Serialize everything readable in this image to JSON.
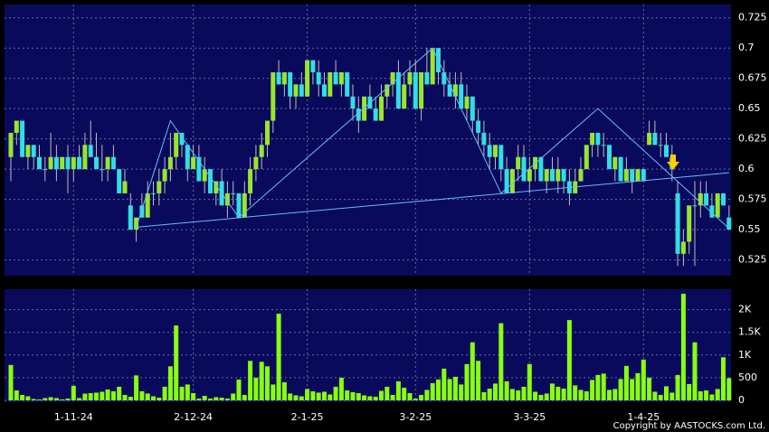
{
  "chart_data": {
    "type": "candlestick",
    "categories": [
      null,
      null,
      null,
      null,
      null,
      null,
      null,
      null,
      null,
      null,
      null,
      "1-11-24",
      null,
      null,
      null,
      null,
      null,
      null,
      null,
      null,
      null,
      null,
      null,
      null,
      null,
      null,
      null,
      null,
      null,
      null,
      null,
      null,
      "2-12-24",
      null,
      null,
      null,
      null,
      null,
      null,
      null,
      null,
      null,
      null,
      null,
      null,
      null,
      null,
      null,
      null,
      null,
      null,
      null,
      "2-1-25",
      null,
      null,
      null,
      null,
      null,
      null,
      null,
      null,
      null,
      null,
      null,
      null,
      null,
      null,
      null,
      null,
      null,
      null,
      "3-2-25",
      null,
      null,
      null,
      null,
      null,
      null,
      null,
      null,
      null,
      null,
      null,
      null,
      null,
      null,
      null,
      null,
      null,
      null,
      null,
      "3-3-25",
      null,
      null,
      null,
      null,
      null,
      null,
      null,
      null,
      null,
      null,
      null,
      null,
      null,
      null,
      null,
      null,
      null,
      null,
      null,
      "1-4-25",
      null,
      null,
      null,
      null,
      null,
      null,
      null,
      null,
      null,
      null,
      null,
      null,
      null,
      null,
      null
    ],
    "candles": [
      [
        0.61,
        0.63,
        0.59,
        0.63
      ],
      [
        0.63,
        0.64,
        0.62,
        0.64
      ],
      [
        0.64,
        0.64,
        0.61,
        0.61
      ],
      [
        0.61,
        0.62,
        0.6,
        0.62
      ],
      [
        0.62,
        0.62,
        0.6,
        0.61
      ],
      [
        0.61,
        0.62,
        0.6,
        0.6
      ],
      [
        0.6,
        0.61,
        0.59,
        0.6
      ],
      [
        0.6,
        0.63,
        0.6,
        0.61
      ],
      [
        0.61,
        0.62,
        0.59,
        0.6
      ],
      [
        0.6,
        0.61,
        0.6,
        0.61
      ],
      [
        0.61,
        0.62,
        0.58,
        0.6
      ],
      [
        0.6,
        0.61,
        0.59,
        0.61
      ],
      [
        0.61,
        0.62,
        0.6,
        0.6
      ],
      [
        0.6,
        0.63,
        0.6,
        0.62
      ],
      [
        0.62,
        0.64,
        0.61,
        0.61
      ],
      [
        0.61,
        0.63,
        0.6,
        0.6
      ],
      [
        0.6,
        0.62,
        0.59,
        0.6
      ],
      [
        0.6,
        0.61,
        0.59,
        0.61
      ],
      [
        0.61,
        0.62,
        0.6,
        0.6
      ],
      [
        0.6,
        0.6,
        0.58,
        0.58
      ],
      [
        0.58,
        0.6,
        0.58,
        0.59
      ],
      [
        0.57,
        0.58,
        0.55,
        0.55
      ],
      [
        0.55,
        0.56,
        0.54,
        0.56
      ],
      [
        0.57,
        0.58,
        0.56,
        0.56
      ],
      [
        0.56,
        0.59,
        0.56,
        0.58
      ],
      [
        0.58,
        0.59,
        0.57,
        0.58
      ],
      [
        0.58,
        0.6,
        0.57,
        0.59
      ],
      [
        0.59,
        0.61,
        0.58,
        0.6
      ],
      [
        0.6,
        0.63,
        0.59,
        0.61
      ],
      [
        0.61,
        0.63,
        0.6,
        0.63
      ],
      [
        0.63,
        0.63,
        0.61,
        0.62
      ],
      [
        0.62,
        0.62,
        0.59,
        0.6
      ],
      [
        0.6,
        0.62,
        0.6,
        0.61
      ],
      [
        0.61,
        0.62,
        0.59,
        0.59
      ],
      [
        0.59,
        0.61,
        0.58,
        0.6
      ],
      [
        0.6,
        0.6,
        0.58,
        0.58
      ],
      [
        0.58,
        0.59,
        0.57,
        0.59
      ],
      [
        0.59,
        0.6,
        0.57,
        0.57
      ],
      [
        0.57,
        0.59,
        0.56,
        0.58
      ],
      [
        0.58,
        0.59,
        0.57,
        0.58
      ],
      [
        0.58,
        0.58,
        0.56,
        0.56
      ],
      [
        0.56,
        0.59,
        0.56,
        0.58
      ],
      [
        0.58,
        0.61,
        0.57,
        0.6
      ],
      [
        0.6,
        0.62,
        0.59,
        0.61
      ],
      [
        0.61,
        0.63,
        0.6,
        0.62
      ],
      [
        0.62,
        0.64,
        0.61,
        0.64
      ],
      [
        0.64,
        0.68,
        0.63,
        0.68
      ],
      [
        0.68,
        0.69,
        0.67,
        0.67
      ],
      [
        0.67,
        0.68,
        0.66,
        0.68
      ],
      [
        0.68,
        0.68,
        0.65,
        0.66
      ],
      [
        0.66,
        0.67,
        0.65,
        0.67
      ],
      [
        0.67,
        0.68,
        0.66,
        0.66
      ],
      [
        0.66,
        0.69,
        0.66,
        0.69
      ],
      [
        0.69,
        0.69,
        0.67,
        0.68
      ],
      [
        0.68,
        0.69,
        0.66,
        0.67
      ],
      [
        0.67,
        0.68,
        0.66,
        0.66
      ],
      [
        0.66,
        0.68,
        0.66,
        0.68
      ],
      [
        0.68,
        0.69,
        0.67,
        0.67
      ],
      [
        0.67,
        0.68,
        0.66,
        0.68
      ],
      [
        0.68,
        0.68,
        0.66,
        0.66
      ],
      [
        0.66,
        0.67,
        0.64,
        0.65
      ],
      [
        0.65,
        0.66,
        0.63,
        0.64
      ],
      [
        0.64,
        0.66,
        0.64,
        0.66
      ],
      [
        0.66,
        0.67,
        0.65,
        0.65
      ],
      [
        0.65,
        0.66,
        0.64,
        0.64
      ],
      [
        0.64,
        0.67,
        0.64,
        0.66
      ],
      [
        0.66,
        0.67,
        0.65,
        0.67
      ],
      [
        0.67,
        0.68,
        0.66,
        0.68
      ],
      [
        0.68,
        0.69,
        0.65,
        0.65
      ],
      [
        0.65,
        0.68,
        0.65,
        0.67
      ],
      [
        0.67,
        0.69,
        0.66,
        0.68
      ],
      [
        0.68,
        0.69,
        0.65,
        0.65
      ],
      [
        0.65,
        0.68,
        0.64,
        0.68
      ],
      [
        0.68,
        0.7,
        0.67,
        0.67
      ],
      [
        0.67,
        0.7,
        0.67,
        0.7
      ],
      [
        0.7,
        0.7,
        0.67,
        0.68
      ],
      [
        0.68,
        0.69,
        0.66,
        0.67
      ],
      [
        0.67,
        0.68,
        0.66,
        0.66
      ],
      [
        0.66,
        0.68,
        0.65,
        0.67
      ],
      [
        0.67,
        0.68,
        0.65,
        0.65
      ],
      [
        0.65,
        0.67,
        0.64,
        0.66
      ],
      [
        0.66,
        0.66,
        0.63,
        0.64
      ],
      [
        0.64,
        0.65,
        0.62,
        0.63
      ],
      [
        0.63,
        0.64,
        0.61,
        0.62
      ],
      [
        0.62,
        0.63,
        0.6,
        0.61
      ],
      [
        0.61,
        0.62,
        0.6,
        0.62
      ],
      [
        0.62,
        0.62,
        0.59,
        0.6
      ],
      [
        0.6,
        0.61,
        0.58,
        0.58
      ],
      [
        0.58,
        0.6,
        0.58,
        0.6
      ],
      [
        0.6,
        0.62,
        0.59,
        0.61
      ],
      [
        0.61,
        0.62,
        0.59,
        0.59
      ],
      [
        0.59,
        0.61,
        0.58,
        0.6
      ],
      [
        0.6,
        0.61,
        0.59,
        0.61
      ],
      [
        0.61,
        0.61,
        0.59,
        0.59
      ],
      [
        0.59,
        0.6,
        0.58,
        0.6
      ],
      [
        0.6,
        0.61,
        0.59,
        0.59
      ],
      [
        0.59,
        0.61,
        0.58,
        0.6
      ],
      [
        0.6,
        0.6,
        0.58,
        0.59
      ],
      [
        0.59,
        0.6,
        0.57,
        0.58
      ],
      [
        0.58,
        0.6,
        0.58,
        0.59
      ],
      [
        0.59,
        0.61,
        0.59,
        0.6
      ],
      [
        0.6,
        0.62,
        0.6,
        0.62
      ],
      [
        0.62,
        0.63,
        0.61,
        0.63
      ],
      [
        0.63,
        0.63,
        0.61,
        0.62
      ],
      [
        0.62,
        0.63,
        0.61,
        0.62
      ],
      [
        0.62,
        0.62,
        0.6,
        0.6
      ],
      [
        0.6,
        0.61,
        0.59,
        0.61
      ],
      [
        0.61,
        0.61,
        0.59,
        0.59
      ],
      [
        0.59,
        0.61,
        0.59,
        0.6
      ],
      [
        0.6,
        0.6,
        0.58,
        0.59
      ],
      [
        0.59,
        0.6,
        0.59,
        0.6
      ],
      [
        0.6,
        0.6,
        0.59,
        0.59
      ],
      [
        0.62,
        0.64,
        0.62,
        0.63
      ],
      [
        0.63,
        0.64,
        0.62,
        0.62
      ],
      [
        0.62,
        0.63,
        0.61,
        0.62
      ],
      [
        0.62,
        0.63,
        0.61,
        0.61
      ],
      [
        0.61,
        0.62,
        0.59,
        0.6
      ],
      [
        0.58,
        0.59,
        0.52,
        0.53
      ],
      [
        0.53,
        0.55,
        0.52,
        0.54
      ],
      [
        0.54,
        0.57,
        0.53,
        0.57
      ],
      [
        0.57,
        0.59,
        0.52,
        0.57
      ],
      [
        0.57,
        0.59,
        0.56,
        0.58
      ],
      [
        0.58,
        0.59,
        0.57,
        0.57
      ],
      [
        0.57,
        0.58,
        0.56,
        0.56
      ],
      [
        0.56,
        0.58,
        0.56,
        0.58
      ],
      [
        0.58,
        0.58,
        0.57,
        0.57
      ],
      [
        0.56,
        0.57,
        0.55,
        0.55
      ]
    ],
    "volumes": [
      780,
      220,
      120,
      90,
      30,
      20,
      50,
      70,
      50,
      20,
      40,
      320,
      50,
      150,
      160,
      170,
      190,
      240,
      200,
      300,
      120,
      80,
      550,
      200,
      150,
      90,
      60,
      300,
      750,
      1650,
      300,
      350,
      160,
      40,
      100,
      40,
      70,
      60,
      40,
      150,
      460,
      120,
      870,
      500,
      850,
      750,
      350,
      1910,
      400,
      150,
      110,
      90,
      250,
      200,
      170,
      190,
      130,
      300,
      500,
      220,
      180,
      160,
      110,
      90,
      80,
      210,
      300,
      120,
      420,
      280,
      160,
      40,
      120,
      230,
      380,
      460,
      700,
      470,
      520,
      350,
      800,
      1280,
      870,
      180,
      260,
      370,
      1700,
      420,
      250,
      220,
      300,
      800,
      190,
      120,
      150,
      370,
      300,
      260,
      1770,
      330,
      230,
      200,
      450,
      560,
      590,
      230,
      250,
      470,
      760,
      470,
      600,
      900,
      500,
      190,
      120,
      310,
      170,
      560,
      2350,
      360,
      1280,
      200,
      220,
      130,
      250,
      950,
      490
    ],
    "up_color": "#99e62e",
    "down_color": "#33dde6",
    "volume_color": "#88ff11",
    "ylim": [
      0.512,
      0.736
    ],
    "yticks": [
      0.525,
      0.55,
      0.575,
      0.6,
      0.625,
      0.65,
      0.675,
      0.7,
      0.725
    ],
    "volume_ylim": [
      0,
      2450
    ],
    "volume_yticks": [
      0,
      500,
      {
        "value": 1000,
        "label": "1K"
      },
      {
        "value": 1500,
        "label": "1.5K"
      },
      {
        "value": 2000,
        "label": "2K"
      }
    ],
    "trendlines": [
      [
        [
          22,
          0.552
        ],
        [
          126,
          0.597
        ]
      ],
      [
        [
          22,
          0.552
        ],
        [
          28,
          0.64
        ],
        [
          40,
          0.56
        ],
        [
          74,
          0.7
        ],
        [
          86,
          0.58
        ],
        [
          103,
          0.65
        ],
        [
          126,
          0.551
        ]
      ]
    ],
    "grid": true,
    "copyright": "Copyright by AASTOCKS.com Ltd."
  }
}
